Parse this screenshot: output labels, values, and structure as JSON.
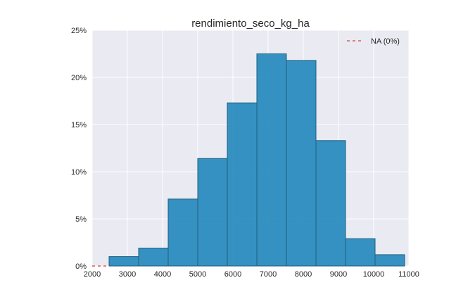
{
  "chart_data": {
    "type": "bar",
    "title": "rendimiento_seco_kg_ha",
    "xlabel": "",
    "ylabel": "",
    "xlim": [
      2000,
      11000
    ],
    "ylim": [
      0,
      25
    ],
    "x_ticks": [
      2000,
      3000,
      4000,
      5000,
      6000,
      7000,
      8000,
      9000,
      10000,
      11000
    ],
    "y_ticks": [
      0,
      5,
      10,
      15,
      20,
      25
    ],
    "y_tick_labels": [
      "0%",
      "5%",
      "10%",
      "15%",
      "20%",
      "25%"
    ],
    "bin_edges": [
      2480,
      3320,
      4160,
      5000,
      5840,
      6680,
      7520,
      8360,
      9200,
      10040,
      10880
    ],
    "values": [
      1.0,
      1.9,
      7.1,
      11.4,
      17.3,
      22.5,
      21.8,
      13.3,
      2.9,
      1.2
    ],
    "bar_color": "#2b8cbe",
    "grid": true,
    "background": "#eaeaf2",
    "legend": {
      "placement": "top-right",
      "entries": [
        {
          "label": "NA (0%)",
          "color": "#e05b5b",
          "style": "dashed"
        }
      ]
    },
    "na_value": 0
  }
}
